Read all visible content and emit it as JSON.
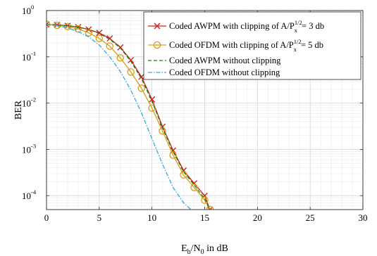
{
  "chart_data": {
    "type": "line",
    "xlabel": {
      "base": "E",
      "sub1": "b",
      "mid": "/N",
      "sub2": "0",
      "tail": " in dB"
    },
    "ylabel": "BER",
    "xlim": [
      0,
      30
    ],
    "ylim": [
      5e-05,
      1
    ],
    "yscale": "log",
    "grid": true,
    "legend_position": "top-right",
    "x_ticks": [
      "0",
      "5",
      "10",
      "15",
      "20",
      "25",
      "30"
    ],
    "y_ticks": [
      {
        "value": 1,
        "base": "10",
        "exp": "0"
      },
      {
        "value": 0.1,
        "base": "10",
        "exp": "-1"
      },
      {
        "value": 0.01,
        "base": "10",
        "exp": "-2"
      },
      {
        "value": 0.001,
        "base": "10",
        "exp": "-3"
      },
      {
        "value": 0.0001,
        "base": "10",
        "exp": "-4"
      }
    ],
    "series": [
      {
        "name": "Coded AWPM with clipping of A/P_x^{1/2} = 3 db",
        "legend": {
          "pre": "Coded AWPM with clipping of A/P",
          "sup": "1/2",
          "sub": "x",
          "post": " = 3 db"
        },
        "color": "#cc2222",
        "marker": "x",
        "line_style": "solid",
        "x": [
          0,
          1,
          2,
          3,
          4,
          5,
          6,
          7,
          8,
          9,
          10,
          11,
          12,
          13,
          14,
          15,
          15.5
        ],
        "y": [
          0.5,
          0.49,
          0.47,
          0.44,
          0.39,
          0.33,
          0.25,
          0.16,
          0.085,
          0.037,
          0.012,
          0.0031,
          0.00095,
          0.00035,
          0.000185,
          0.0001,
          5e-05
        ]
      },
      {
        "name": "Coded OFDM with clipping of A/P_x^{1/2} = 5 db",
        "legend": {
          "pre": "Coded OFDM with clipping of A/P",
          "sup": "1/2",
          "sub": "x",
          "post": " = 5 db"
        },
        "color": "#d4a017",
        "marker": "o",
        "line_style": "solid",
        "x": [
          0,
          1,
          2,
          3,
          4,
          5,
          6,
          7,
          8,
          9,
          10,
          11,
          12,
          13,
          14,
          15,
          15.5
        ],
        "y": [
          0.5,
          0.48,
          0.45,
          0.4,
          0.33,
          0.25,
          0.17,
          0.095,
          0.047,
          0.021,
          0.0078,
          0.0025,
          0.00075,
          0.00028,
          0.00015,
          8e-05,
          5e-05
        ]
      },
      {
        "name": "Coded AWPM without clipping",
        "legend": {
          "pre": "Coded AWPM without clipping",
          "sup": "",
          "sub": "",
          "post": ""
        },
        "color": "#1a7a1a",
        "marker": "none",
        "line_style": "dashed",
        "x": [
          0,
          1,
          2,
          3,
          4,
          5,
          6,
          7,
          8,
          9,
          10,
          11,
          12,
          13,
          14,
          15,
          15.5
        ],
        "y": [
          0.5,
          0.49,
          0.47,
          0.44,
          0.39,
          0.32,
          0.24,
          0.155,
          0.08,
          0.034,
          0.011,
          0.0029,
          0.0009,
          0.00033,
          0.00017,
          8.5e-05,
          5e-05
        ]
      },
      {
        "name": "Coded OFDM without clipping",
        "legend": {
          "pre": "Coded OFDM without clipping",
          "sup": "",
          "sub": "",
          "post": ""
        },
        "color": "#33aadd",
        "marker": "none",
        "line_style": "dashdot",
        "x": [
          0,
          1,
          2,
          3,
          4,
          5,
          6,
          7,
          8,
          9,
          10,
          11,
          12,
          13,
          13.7
        ],
        "y": [
          0.5,
          0.47,
          0.42,
          0.35,
          0.27,
          0.18,
          0.1,
          0.048,
          0.019,
          0.0062,
          0.0017,
          0.00048,
          0.00015,
          7e-05,
          5e-05
        ]
      }
    ]
  }
}
